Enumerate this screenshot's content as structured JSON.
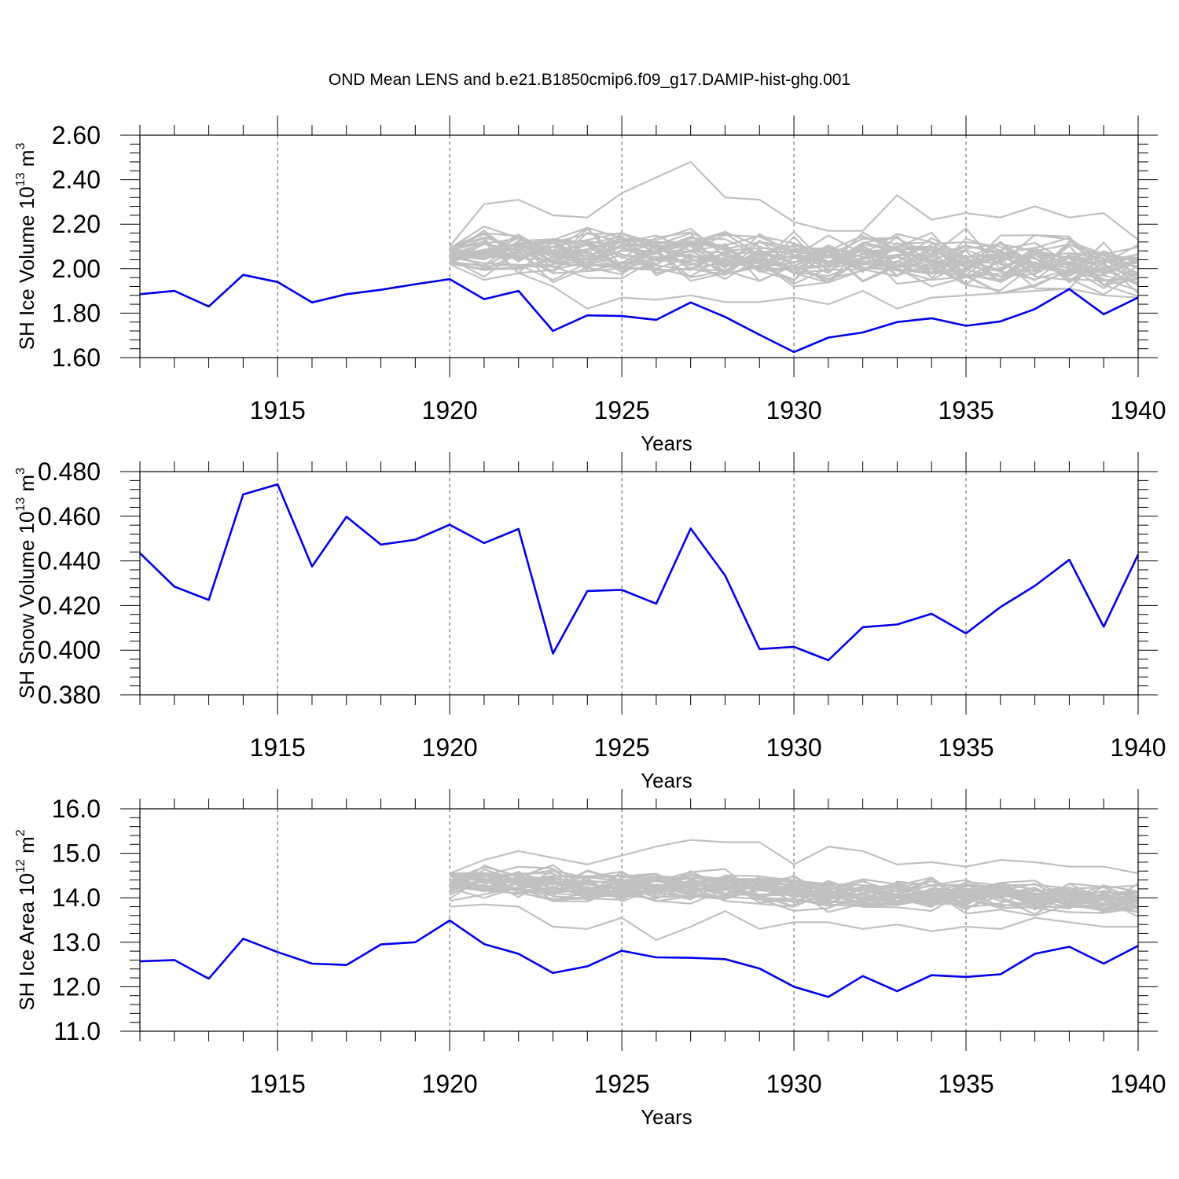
{
  "title": "OND Mean LENS and b.e21.B1850cmip6.f09_g17.DAMIP-hist-ghg.001",
  "colors": {
    "main": "#0000ee",
    "ensemble": "#c0c0c0",
    "axis": "#000000",
    "grid": "#555555"
  },
  "chart_data": [
    {
      "type": "line",
      "id": "ice-volume",
      "ylabel": {
        "text": "SH Ice Volume 10",
        "exp1": "13",
        "unit": " m",
        "exp2": "3"
      },
      "xlabel": "Years",
      "xlim": [
        1911,
        1940
      ],
      "ylim": [
        1.6,
        2.6
      ],
      "yticks": [
        1.6,
        1.8,
        2.0,
        2.2,
        2.4,
        2.6
      ],
      "yticklabels": [
        "1.60",
        "1.80",
        "2.00",
        "2.20",
        "2.40",
        "2.60"
      ],
      "xticks": [
        1915,
        1920,
        1925,
        1930,
        1935,
        1940
      ],
      "xticklabels": [
        "1915",
        "1920",
        "1925",
        "1930",
        "1935",
        "1940"
      ],
      "grid_x": true,
      "series": [
        {
          "name": "b.e21.B1850cmip6.f09_g17.DAMIP-hist-ghg.001",
          "x": [
            1911,
            1912,
            1913,
            1914,
            1915,
            1916,
            1917,
            1918,
            1919,
            1920,
            1921,
            1922,
            1923,
            1924,
            1925,
            1926,
            1927,
            1928,
            1929,
            1930,
            1931,
            1932,
            1933,
            1934,
            1935,
            1936,
            1937,
            1938,
            1939,
            1940
          ],
          "values": [
            1.885,
            1.9,
            1.83,
            1.972,
            1.94,
            1.848,
            1.885,
            1.905,
            1.93,
            1.953,
            1.863,
            1.9,
            1.72,
            1.79,
            1.787,
            1.77,
            1.848,
            1.783,
            1.703,
            1.625,
            1.69,
            1.713,
            1.76,
            1.777,
            1.743,
            1.763,
            1.818,
            1.908,
            1.795,
            1.87
          ]
        }
      ],
      "ensemble": {
        "name": "LENS",
        "count": 40,
        "x_start": 1920,
        "x_end": 1940,
        "mean": [
          2.06,
          2.1,
          2.09,
          2.08,
          2.08,
          2.08,
          2.07,
          2.07,
          2.06,
          2.05,
          2.05,
          2.05,
          2.06,
          2.06,
          2.05,
          2.04,
          2.03,
          2.03,
          2.03,
          2.02,
          2.0
        ],
        "spread": 0.13,
        "envelope_high": [
          2.1,
          2.29,
          2.31,
          2.24,
          2.23,
          2.34,
          2.41,
          2.48,
          2.32,
          2.31,
          2.21,
          2.17,
          2.17,
          2.33,
          2.22,
          2.25,
          2.23,
          2.28,
          2.23,
          2.25,
          2.13
        ],
        "envelope_low": [
          2.02,
          1.95,
          1.98,
          1.92,
          1.82,
          1.87,
          1.86,
          1.88,
          1.85,
          1.85,
          1.87,
          1.84,
          1.9,
          1.82,
          1.87,
          1.88,
          1.89,
          1.9,
          1.91,
          1.88,
          1.87
        ],
        "seed": 11
      }
    },
    {
      "type": "line",
      "id": "snow-volume",
      "ylabel": {
        "text": "SH Snow Volume 10",
        "exp1": "13",
        "unit": " m",
        "exp2": "3"
      },
      "xlabel": "Years",
      "xlim": [
        1911,
        1940
      ],
      "ylim": [
        0.38,
        0.48
      ],
      "yticks": [
        0.38,
        0.4,
        0.42,
        0.44,
        0.46,
        0.48
      ],
      "yticklabels": [
        "0.380",
        "0.400",
        "0.420",
        "0.440",
        "0.460",
        "0.480"
      ],
      "xticks": [
        1915,
        1920,
        1925,
        1930,
        1935,
        1940
      ],
      "xticklabels": [
        "1915",
        "1920",
        "1925",
        "1930",
        "1935",
        "1940"
      ],
      "grid_x": true,
      "series": [
        {
          "name": "b.e21.B1850cmip6.f09_g17.DAMIP-hist-ghg.001",
          "x": [
            1911,
            1912,
            1913,
            1914,
            1915,
            1916,
            1917,
            1918,
            1919,
            1920,
            1921,
            1922,
            1923,
            1924,
            1925,
            1926,
            1927,
            1928,
            1929,
            1930,
            1931,
            1932,
            1933,
            1934,
            1935,
            1936,
            1937,
            1938,
            1939,
            1940
          ],
          "values": [
            0.4435,
            0.4285,
            0.4225,
            0.4698,
            0.4743,
            0.4375,
            0.4598,
            0.4473,
            0.4495,
            0.4562,
            0.448,
            0.4543,
            0.3985,
            0.4265,
            0.427,
            0.4208,
            0.4545,
            0.4335,
            0.4005,
            0.4015,
            0.3955,
            0.4103,
            0.4115,
            0.4163,
            0.4075,
            0.4193,
            0.4288,
            0.4405,
            0.4105,
            0.4428
          ]
        }
      ]
    },
    {
      "type": "line",
      "id": "ice-area",
      "ylabel": {
        "text": "SH Ice Area 10",
        "exp1": "12",
        "unit": " m",
        "exp2": "2"
      },
      "xlabel": "Years",
      "xlim": [
        1911,
        1940
      ],
      "ylim": [
        11.0,
        16.0
      ],
      "yticks": [
        11,
        12,
        13,
        14,
        15,
        16
      ],
      "yticklabels": [
        "11.0",
        "12.0",
        "13.0",
        "14.0",
        "15.0",
        "16.0"
      ],
      "xticks": [
        1915,
        1920,
        1925,
        1930,
        1935,
        1940
      ],
      "xticklabels": [
        "1915",
        "1920",
        "1925",
        "1930",
        "1935",
        "1940"
      ],
      "grid_x": true,
      "series": [
        {
          "name": "b.e21.B1850cmip6.f09_g17.DAMIP-hist-ghg.001",
          "x": [
            1911,
            1912,
            1913,
            1914,
            1915,
            1916,
            1917,
            1918,
            1919,
            1920,
            1921,
            1922,
            1923,
            1924,
            1925,
            1926,
            1927,
            1928,
            1929,
            1930,
            1931,
            1932,
            1933,
            1934,
            1935,
            1936,
            1937,
            1938,
            1939,
            1940
          ],
          "values": [
            12.57,
            12.6,
            12.18,
            13.08,
            12.78,
            12.52,
            12.49,
            12.95,
            13.0,
            13.49,
            12.96,
            12.74,
            12.31,
            12.46,
            12.81,
            12.66,
            12.65,
            12.62,
            12.41,
            12.0,
            11.77,
            12.24,
            11.9,
            12.26,
            12.22,
            12.28,
            12.74,
            12.9,
            12.52,
            12.92
          ]
        }
      ],
      "ensemble": {
        "name": "LENS",
        "count": 40,
        "x_start": 1920,
        "x_end": 1940,
        "mean": [
          14.3,
          14.35,
          14.33,
          14.3,
          14.25,
          14.25,
          14.22,
          14.24,
          14.22,
          14.18,
          14.12,
          14.1,
          14.12,
          14.15,
          14.1,
          14.05,
          14.02,
          14.0,
          13.98,
          13.95,
          13.92
        ],
        "spread": 0.42,
        "envelope_high": [
          14.55,
          14.85,
          15.05,
          14.9,
          14.75,
          14.95,
          15.15,
          15.3,
          15.25,
          15.25,
          14.75,
          15.15,
          15.05,
          14.75,
          14.8,
          14.7,
          14.85,
          14.8,
          14.7,
          14.7,
          14.55
        ],
        "envelope_low": [
          13.8,
          13.85,
          13.8,
          13.35,
          13.3,
          13.55,
          13.05,
          13.35,
          13.7,
          13.3,
          13.45,
          13.45,
          13.3,
          13.4,
          13.25,
          13.35,
          13.3,
          13.55,
          13.45,
          13.35,
          13.35
        ],
        "seed": 29
      }
    }
  ]
}
